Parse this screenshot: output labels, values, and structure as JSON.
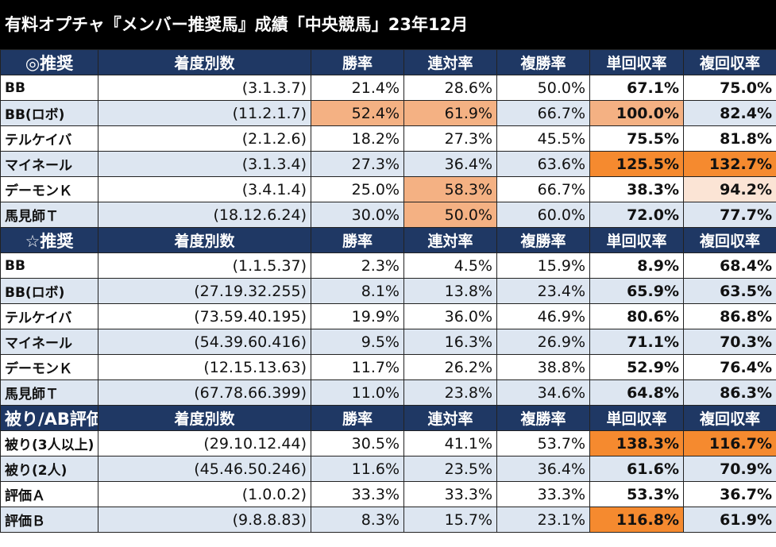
{
  "title": "有料オプチャ『メンバー推奨馬』成績「中央競馬」23年12月",
  "colors": {
    "header_bg": "#1f3864",
    "alt_row": "#dde6f1",
    "highlight_light": "#f4b183",
    "highlight_strong": "#f58a2f",
    "highlight_pale": "#fbe4d5"
  },
  "headers": [
    "着度別数",
    "勝率",
    "連対率",
    "複勝率",
    "単回収率",
    "複回収率"
  ],
  "sections": [
    {
      "label": "◎推奨",
      "rows": [
        {
          "name": "BB",
          "record": "(3.1.3.7)",
          "cells": [
            "21.4%",
            "28.6%",
            "50.0%",
            "67.1%",
            "75.0%"
          ],
          "hl": [
            "",
            "",
            "",
            "",
            ""
          ]
        },
        {
          "name": "BB(ロボ)",
          "record": "(11.2.1.7)",
          "cells": [
            "52.4%",
            "61.9%",
            "66.7%",
            "100.0%",
            "82.4%"
          ],
          "hl": [
            "hl-light",
            "hl-light",
            "",
            "hl-light",
            ""
          ]
        },
        {
          "name": "テルケイバ",
          "record": "(2.1.2.6)",
          "cells": [
            "18.2%",
            "27.3%",
            "45.5%",
            "75.5%",
            "81.8%"
          ],
          "hl": [
            "",
            "",
            "",
            "",
            ""
          ]
        },
        {
          "name": "マイネール",
          "record": "(3.1.3.4)",
          "cells": [
            "27.3%",
            "36.4%",
            "63.6%",
            "125.5%",
            "132.7%"
          ],
          "hl": [
            "",
            "",
            "",
            "hl-strong",
            "hl-strong"
          ]
        },
        {
          "name": "デーモンＫ",
          "record": "(3.4.1.4)",
          "cells": [
            "25.0%",
            "58.3%",
            "66.7%",
            "38.3%",
            "94.2%"
          ],
          "hl": [
            "",
            "hl-light",
            "",
            "",
            "hl-pale"
          ]
        },
        {
          "name": "馬見師Ｔ",
          "record": "(18.12.6.24)",
          "cells": [
            "30.0%",
            "50.0%",
            "60.0%",
            "72.0%",
            "77.7%"
          ],
          "hl": [
            "",
            "hl-light",
            "",
            "",
            ""
          ]
        }
      ]
    },
    {
      "label": "☆推奨",
      "rows": [
        {
          "name": "BB",
          "record": "(1.1.5.37)",
          "cells": [
            "2.3%",
            "4.5%",
            "15.9%",
            "8.9%",
            "68.4%"
          ],
          "hl": [
            "",
            "",
            "",
            "",
            ""
          ]
        },
        {
          "name": "BB(ロボ)",
          "record": "(27.19.32.255)",
          "cells": [
            "8.1%",
            "13.8%",
            "23.4%",
            "65.9%",
            "63.5%"
          ],
          "hl": [
            "",
            "",
            "",
            "",
            ""
          ]
        },
        {
          "name": "テルケイバ",
          "record": "(73.59.40.195)",
          "cells": [
            "19.9%",
            "36.0%",
            "46.9%",
            "80.6%",
            "86.8%"
          ],
          "hl": [
            "",
            "",
            "",
            "",
            ""
          ]
        },
        {
          "name": "マイネール",
          "record": "(54.39.60.416)",
          "cells": [
            "9.5%",
            "16.3%",
            "26.9%",
            "71.1%",
            "70.3%"
          ],
          "hl": [
            "",
            "",
            "",
            "",
            ""
          ]
        },
        {
          "name": "デーモンＫ",
          "record": "(12.15.13.63)",
          "cells": [
            "11.7%",
            "26.2%",
            "38.8%",
            "52.9%",
            "76.4%"
          ],
          "hl": [
            "",
            "",
            "",
            "",
            ""
          ]
        },
        {
          "name": "馬見師Ｔ",
          "record": "(67.78.66.399)",
          "cells": [
            "11.0%",
            "23.8%",
            "34.6%",
            "64.8%",
            "86.3%"
          ],
          "hl": [
            "",
            "",
            "",
            "",
            ""
          ]
        }
      ]
    },
    {
      "label": "被り/AB評価",
      "rows": [
        {
          "name": "被り(3人以上)",
          "record": "(29.10.12.44)",
          "cells": [
            "30.5%",
            "41.1%",
            "53.7%",
            "138.3%",
            "116.7%"
          ],
          "hl": [
            "",
            "",
            "",
            "hl-strong",
            "hl-strong"
          ]
        },
        {
          "name": "被り(2人)",
          "record": "(45.46.50.246)",
          "cells": [
            "11.6%",
            "23.5%",
            "36.4%",
            "61.6%",
            "70.9%"
          ],
          "hl": [
            "",
            "",
            "",
            "",
            ""
          ]
        },
        {
          "name": "評価Ａ",
          "record": "(1.0.0.2)",
          "cells": [
            "33.3%",
            "33.3%",
            "33.3%",
            "53.3%",
            "36.7%"
          ],
          "hl": [
            "",
            "",
            "",
            "",
            ""
          ]
        },
        {
          "name": "評価Ｂ",
          "record": "(9.8.8.83)",
          "cells": [
            "8.3%",
            "15.7%",
            "23.1%",
            "116.8%",
            "61.9%"
          ],
          "hl": [
            "",
            "",
            "",
            "hl-strong",
            ""
          ]
        }
      ]
    }
  ]
}
